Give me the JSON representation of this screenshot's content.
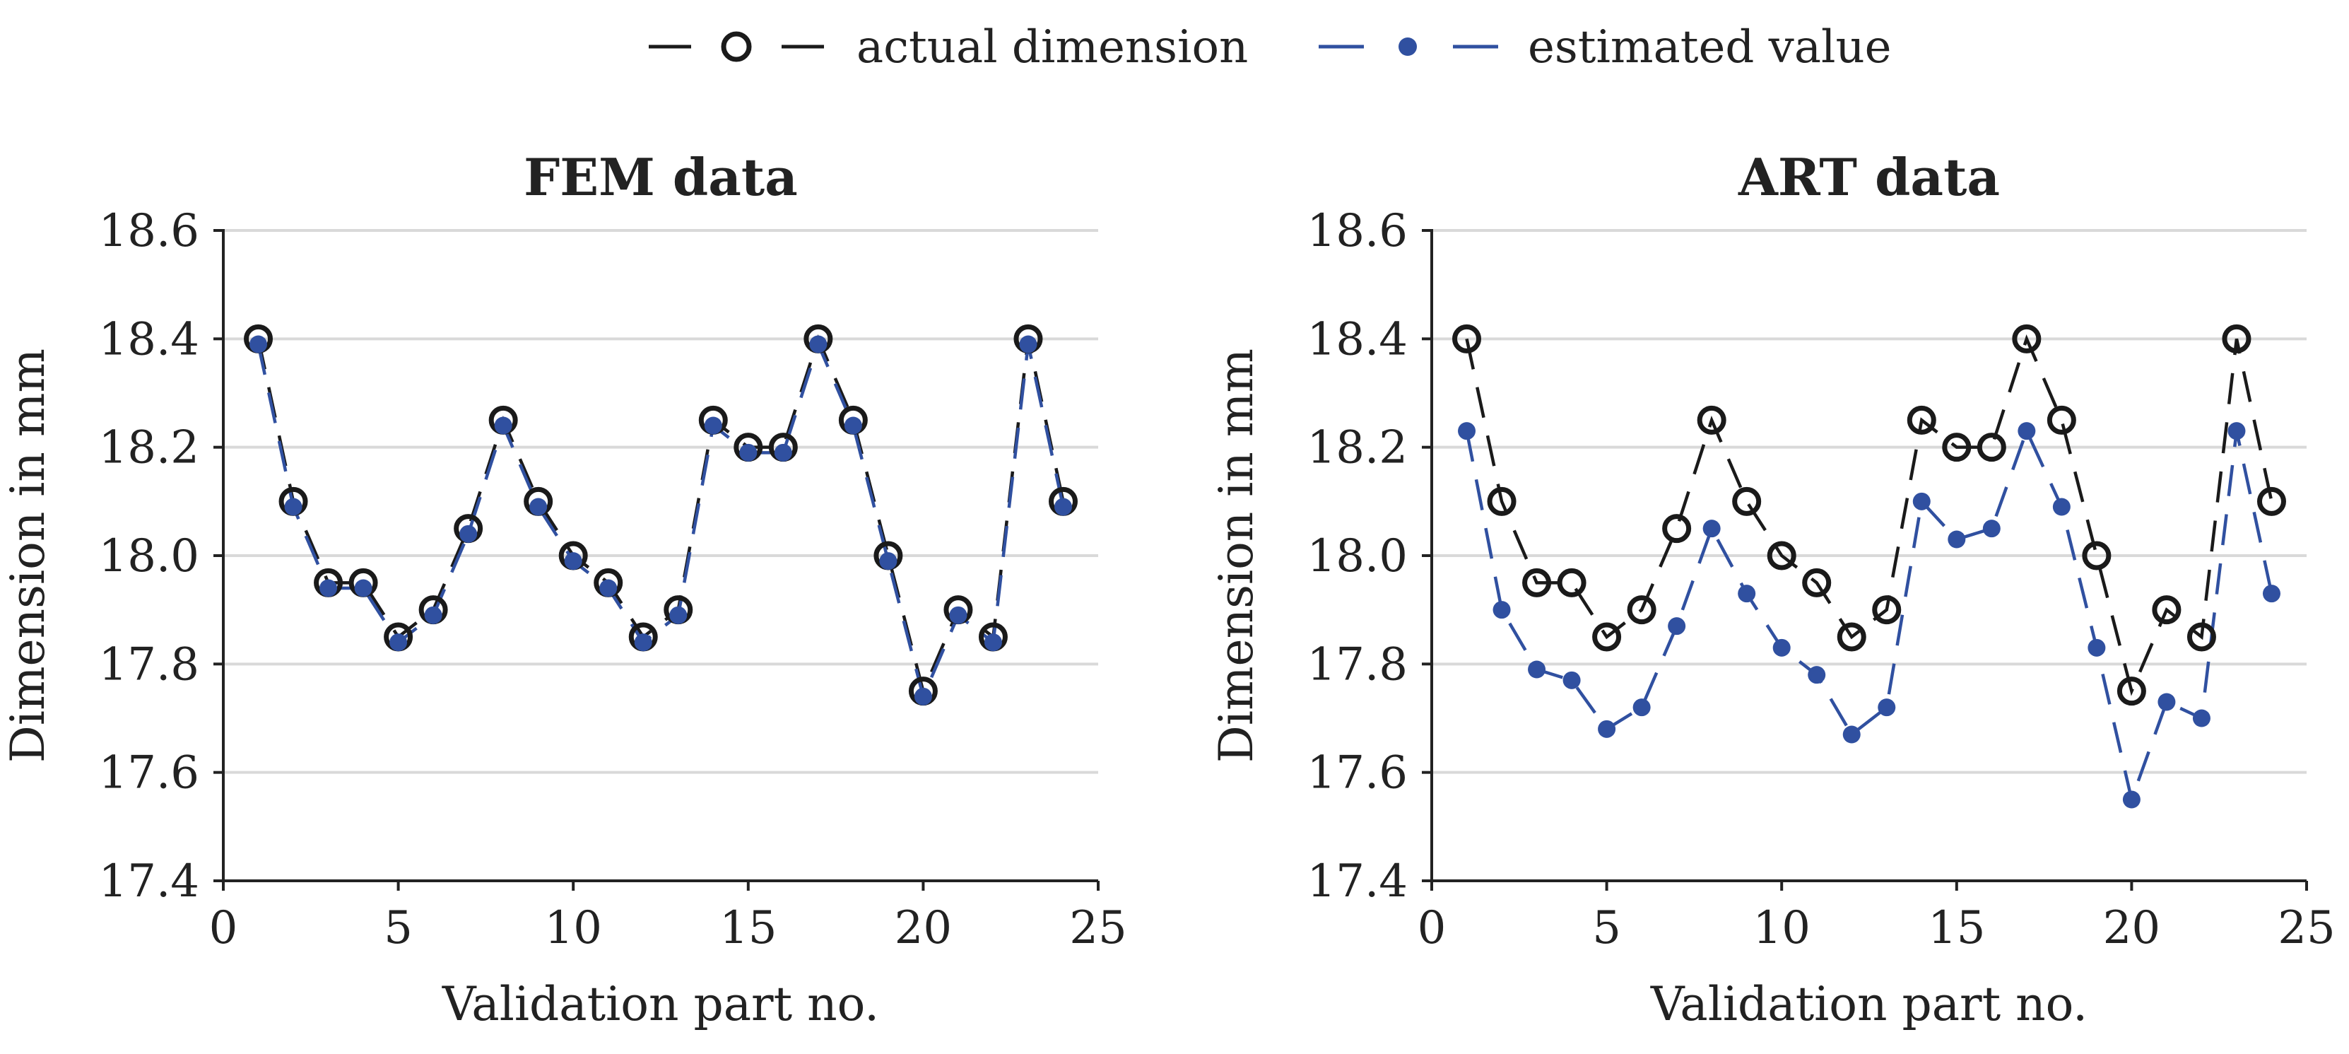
{
  "legend": {
    "actual_label": "actual dimension",
    "estimated_label": "estimated value"
  },
  "colors": {
    "actual": "#1a1a1a",
    "estimated": "#3050a0",
    "grid": "#d9d9d9",
    "text": "#222222"
  },
  "chart_data": [
    {
      "type": "line",
      "title": "FEM data",
      "xlabel": "Validation part no.",
      "ylabel": "Dimension in mm",
      "xlim": [
        0,
        25
      ],
      "ylim": [
        17.4,
        18.6
      ],
      "xticks": [
        0,
        5,
        10,
        15,
        20,
        25
      ],
      "xtick_labels": [
        "0",
        "5",
        "10",
        "15",
        "20",
        "25"
      ],
      "yticks": [
        17.4,
        17.6,
        17.8,
        18.0,
        18.2,
        18.4,
        18.6
      ],
      "ytick_labels": [
        "17.4",
        "17.6",
        "17.8",
        "18.0",
        "18.2",
        "18.4",
        "18.6"
      ],
      "grid": "horizontal",
      "x": [
        1,
        2,
        3,
        4,
        5,
        6,
        7,
        8,
        9,
        10,
        11,
        12,
        13,
        14,
        15,
        16,
        17,
        18,
        19,
        20,
        21,
        22,
        23,
        24
      ],
      "series": [
        {
          "name": "actual dimension",
          "values": [
            18.4,
            18.1,
            17.95,
            17.95,
            17.85,
            17.9,
            18.05,
            18.25,
            18.1,
            18.0,
            17.95,
            17.85,
            17.9,
            18.25,
            18.2,
            18.2,
            18.4,
            18.25,
            18.0,
            17.75,
            17.9,
            17.85,
            18.4,
            18.1
          ]
        },
        {
          "name": "estimated value",
          "values": [
            18.39,
            18.09,
            17.94,
            17.94,
            17.84,
            17.89,
            18.04,
            18.24,
            18.09,
            17.99,
            17.94,
            17.84,
            17.89,
            18.24,
            18.19,
            18.19,
            18.39,
            18.24,
            17.99,
            17.74,
            17.89,
            17.84,
            18.39,
            18.09
          ]
        }
      ]
    },
    {
      "type": "line",
      "title": "ART data",
      "xlabel": "Validation part no.",
      "ylabel": "Dimension in mm",
      "xlim": [
        0,
        25
      ],
      "ylim": [
        17.4,
        18.6
      ],
      "xticks": [
        0,
        5,
        10,
        15,
        20,
        25
      ],
      "xtick_labels": [
        "0",
        "5",
        "10",
        "15",
        "20",
        "25"
      ],
      "yticks": [
        17.4,
        17.6,
        17.8,
        18.0,
        18.2,
        18.4,
        18.6
      ],
      "ytick_labels": [
        "17.4",
        "17.6",
        "17.8",
        "18.0",
        "18.2",
        "18.4",
        "18.6"
      ],
      "grid": "horizontal",
      "x": [
        1,
        2,
        3,
        4,
        5,
        6,
        7,
        8,
        9,
        10,
        11,
        12,
        13,
        14,
        15,
        16,
        17,
        18,
        19,
        20,
        21,
        22,
        23,
        24
      ],
      "series": [
        {
          "name": "actual dimension",
          "values": [
            18.4,
            18.1,
            17.95,
            17.95,
            17.85,
            17.9,
            18.05,
            18.25,
            18.1,
            18.0,
            17.95,
            17.85,
            17.9,
            18.25,
            18.2,
            18.2,
            18.4,
            18.25,
            18.0,
            17.75,
            17.9,
            17.85,
            18.4,
            18.1
          ]
        },
        {
          "name": "estimated value",
          "values": [
            18.23,
            17.9,
            17.79,
            17.77,
            17.68,
            17.72,
            17.87,
            18.05,
            17.93,
            17.83,
            17.78,
            17.67,
            17.72,
            18.1,
            18.03,
            18.05,
            18.23,
            18.09,
            17.83,
            17.55,
            17.73,
            17.7,
            18.23,
            17.93
          ]
        }
      ]
    }
  ]
}
